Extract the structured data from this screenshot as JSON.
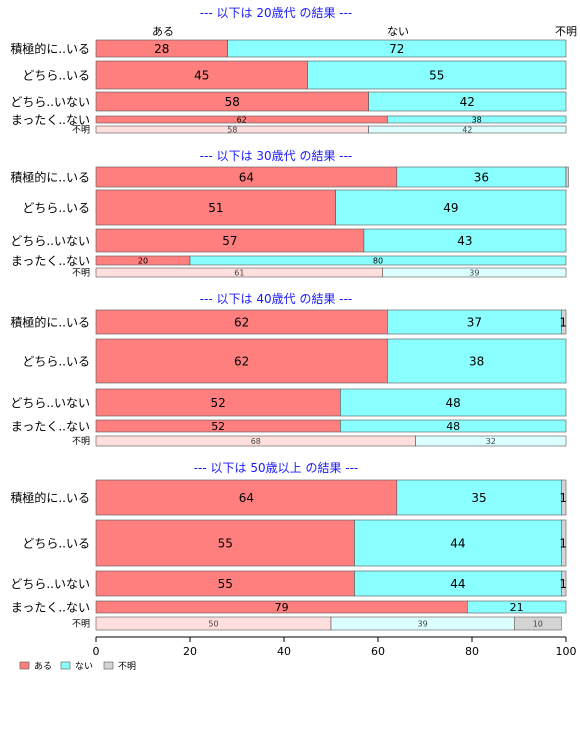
{
  "colors": {
    "ある": "#ff7f7f",
    "ない": "#8affff",
    "不明": "#d4d4d4",
    "title": "#1a1aff"
  },
  "chart_data": {
    "type": "bar",
    "orientation": "horizontal-stacked",
    "xlim": [
      0,
      100
    ],
    "x_ticks": [
      "0",
      "20",
      "40",
      "60",
      "80",
      "100"
    ],
    "column_labels": [
      "ある",
      "ない",
      "不明"
    ],
    "legend": {
      "position": "bottom-left",
      "entries": [
        "ある",
        "ない",
        "不明"
      ]
    },
    "panels": [
      {
        "title": "--- 以下は 20歳代 の結果 ---",
        "rows": [
          {
            "label": "積極的に..いる",
            "values": [
              28,
              72,
              0
            ]
          },
          {
            "label": "どちら..いる",
            "values": [
              45,
              55,
              0
            ]
          },
          {
            "label": "どちら..いない",
            "values": [
              58,
              42,
              0
            ]
          },
          {
            "label": "まったく..ない",
            "values": [
              62,
              38,
              0
            ]
          },
          {
            "label": "不明",
            "values": [
              58,
              42,
              0
            ]
          }
        ]
      },
      {
        "title": "--- 以下は 30歳代 の結果 ---",
        "rows": [
          {
            "label": "積極的に..いる",
            "values": [
              64,
              36,
              0.5
            ]
          },
          {
            "label": "どちら..いる",
            "values": [
              51,
              49,
              0
            ]
          },
          {
            "label": "どちら..いない",
            "values": [
              57,
              43,
              0
            ]
          },
          {
            "label": "まったく..ない",
            "values": [
              20,
              80,
              0
            ]
          },
          {
            "label": "不明",
            "values": [
              61,
              39,
              0
            ]
          }
        ]
      },
      {
        "title": "--- 以下は 40歳代 の結果 ---",
        "rows": [
          {
            "label": "積極的に..いる",
            "values": [
              62,
              37,
              1
            ]
          },
          {
            "label": "どちら..いる",
            "values": [
              62,
              38,
              0
            ]
          },
          {
            "label": "どちら..いない",
            "values": [
              52,
              48,
              0
            ]
          },
          {
            "label": "まったく..ない",
            "values": [
              52,
              48,
              0
            ]
          },
          {
            "label": "不明",
            "values": [
              68,
              32,
              0
            ]
          }
        ]
      },
      {
        "title": "--- 以下は 50歳以上 の結果 ---",
        "rows": [
          {
            "label": "積極的に..いる",
            "values": [
              64,
              35,
              1
            ]
          },
          {
            "label": "どちら..いる",
            "values": [
              55,
              44,
              1
            ]
          },
          {
            "label": "どちら..いない",
            "values": [
              55,
              44,
              1
            ]
          },
          {
            "label": "まったく..ない",
            "values": [
              79,
              21,
              0
            ]
          },
          {
            "label": "不明",
            "values": [
              50,
              39,
              10
            ]
          }
        ]
      }
    ]
  }
}
